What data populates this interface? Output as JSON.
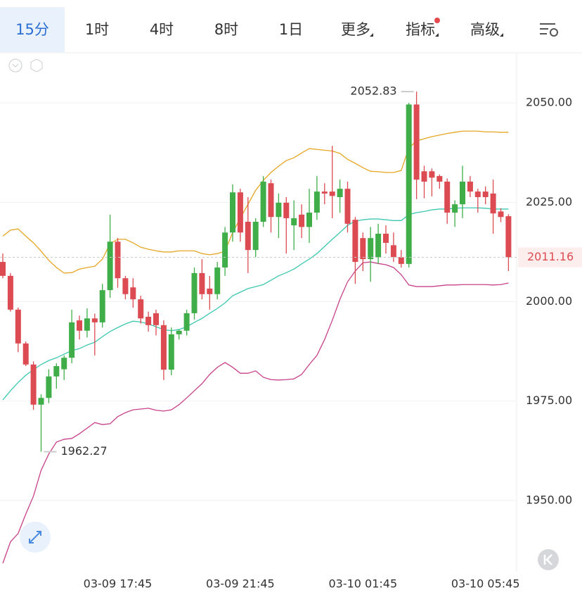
{
  "tabs": [
    "15分",
    "1时",
    "4时",
    "8时",
    "1日",
    "更多",
    "指标",
    "高级"
  ],
  "chart_data": {
    "type": "candlestick",
    "categories": [
      null,
      null,
      null,
      null,
      null,
      null,
      null,
      null,
      null,
      null,
      null,
      null,
      null,
      null,
      null,
      "03-09 17:45",
      null,
      null,
      null,
      null,
      null,
      null,
      null,
      null,
      null,
      null,
      null,
      null,
      null,
      null,
      null,
      "03-09 21:45",
      null,
      null,
      null,
      null,
      null,
      null,
      null,
      null,
      null,
      null,
      null,
      null,
      null,
      null,
      null,
      "03-10 01:45",
      null,
      null,
      null,
      null,
      null,
      null,
      null,
      null,
      null,
      null,
      null,
      null,
      null,
      null,
      null,
      "03-10 05:45",
      null,
      null,
      null
    ],
    "open": [
      2010.0,
      2006.5,
      1998.0,
      1989.5,
      1984.2,
      1974.1,
      1975.8,
      1981.2,
      1983.0,
      1985.9,
      1995.3,
      1992.7,
      1995.8,
      1994.8,
      2002.9,
      2015.1,
      2005.9,
      2003.6,
      2000.6,
      1996.2,
      1997.1,
      1994.1,
      1982.9,
      1991.8,
      1992.7,
      1997.1,
      2007.2,
      2003.3,
      2001.9,
      2008.6,
      2017.4,
      2027.5,
      2020.1,
      2013.0,
      2020.1,
      2029.8,
      2021.3,
      2024.9,
      2019.2,
      2021.9,
      2018.8,
      2022.4,
      2027.7,
      2027.7,
      2026.3,
      2028.4,
      2020.6,
      2016.0,
      2010.7,
      2011.2,
      2017.1,
      2014.2,
      2011.2,
      2009.5,
      2049.6,
      2032.8,
      2032.8,
      2031.6,
      2030.2,
      2022.4,
      2024.5,
      2030.2,
      2027.7,
      2027.7,
      2027.2,
      2022.7,
      2021.5
    ],
    "high": [
      2012.1,
      2007.2,
      1998.5,
      1990.0,
      1985.0,
      1976.7,
      1983.0,
      1984.5,
      1986.5,
      1998.0,
      1996.5,
      1998.3,
      1997.0,
      2004.5,
      2021.9,
      2016.0,
      2006.5,
      2005.9,
      2001.5,
      1997.5,
      1998.0,
      1995.3,
      1993.5,
      1993.0,
      1998.0,
      2008.6,
      2010.7,
      2006.5,
      2010.0,
      2018.8,
      2029.5,
      2028.4,
      2026.3,
      2021.0,
      2031.6,
      2030.7,
      2027.2,
      2026.3,
      2025.5,
      2024.5,
      2028.4,
      2031.6,
      2029.8,
      2039.2,
      2030.7,
      2030.2,
      2021.3,
      2017.4,
      2018.8,
      2019.6,
      2019.2,
      2017.4,
      2013.0,
      2050.0,
      2052.83,
      2034.2,
      2033.5,
      2032.0,
      2031.0,
      2025.5,
      2034.2,
      2031.6,
      2028.4,
      2029.0,
      2030.7,
      2023.5,
      2022.0
    ],
    "low": [
      2005.9,
      1997.5,
      1987.3,
      1983.8,
      1972.8,
      1962.27,
      1974.5,
      1978.1,
      1980.3,
      1984.5,
      1990.5,
      1991.0,
      1986.5,
      1993.5,
      2001.0,
      2003.5,
      2000.6,
      1998.5,
      1994.5,
      1992.5,
      1991.5,
      1980.3,
      1981.5,
      1990.5,
      1991.5,
      1995.5,
      2000.6,
      1998.0,
      2000.6,
      2006.5,
      2015.1,
      2015.1,
      2007.2,
      2011.2,
      2018.8,
      2017.4,
      2016.0,
      2012.1,
      2013.0,
      2016.0,
      2014.8,
      2020.6,
      2024.5,
      2021.0,
      2022.4,
      2017.4,
      2004.5,
      2007.7,
      2005.0,
      2009.5,
      2012.1,
      2010.0,
      2008.6,
      2008.6,
      2025.8,
      2026.0,
      2026.5,
      2028.4,
      2019.6,
      2018.8,
      2021.0,
      2026.3,
      2022.4,
      2024.5,
      2017.1,
      2020.0,
      2007.7
    ],
    "close": [
      2006.5,
      1998.0,
      1989.5,
      1984.2,
      1974.1,
      1975.8,
      1981.2,
      1983.8,
      1985.9,
      1994.8,
      1992.7,
      1995.8,
      1994.8,
      2002.9,
      2015.1,
      2005.9,
      2001.9,
      2000.6,
      1995.8,
      1994.1,
      1994.1,
      1982.9,
      1991.8,
      1992.7,
      1997.1,
      2007.2,
      2001.9,
      2001.9,
      2008.6,
      2017.4,
      2027.5,
      2017.4,
      2013.0,
      2020.1,
      2030.2,
      2021.3,
      2024.9,
      2021.0,
      2021.0,
      2018.8,
      2022.4,
      2027.7,
      2027.2,
      2026.6,
      2028.4,
      2019.6,
      2010.0,
      2010.7,
      2016.0,
      2017.1,
      2014.8,
      2011.2,
      2009.5,
      2049.6,
      2030.7,
      2030.2,
      2031.2,
      2030.2,
      2022.4,
      2024.5,
      2030.2,
      2027.7,
      2026.3,
      2026.3,
      2022.2,
      2021.3,
      2011.16
    ],
    "up_color": "#3fae49",
    "down_color": "#dc4a52",
    "bands": [
      {
        "color": "#e6a623",
        "values": [
          2016.5,
          2018.0,
          2018.3,
          2016.5,
          2014.8,
          2012.7,
          2010.4,
          2008.6,
          2007.2,
          2007.3,
          2008.2,
          2008.6,
          2008.9,
          2010.7,
          2014.6,
          2015.7,
          2015.7,
          2014.8,
          2013.7,
          2013.2,
          2012.8,
          2012.5,
          2012.5,
          2012.8,
          2012.8,
          2012.8,
          2012.1,
          2011.8,
          2012.1,
          2012.7,
          2017.4,
          2021.0,
          2024.5,
          2028.0,
          2030.5,
          2032.5,
          2034.1,
          2035.5,
          2036.2,
          2037.4,
          2038.5,
          2038.3,
          2038.1,
          2037.9,
          2037.3,
          2035.8,
          2034.8,
          2033.7,
          2032.8,
          2032.7,
          2032.5,
          2032.5,
          2033.0,
          2038.7,
          2040.4,
          2041.0,
          2041.5,
          2041.9,
          2042.3,
          2042.6,
          2042.9,
          2042.9,
          2042.9,
          2042.7,
          2042.7,
          2042.6,
          2042.6
        ]
      },
      {
        "color": "#3cc8b0",
        "values": [
          1975.3,
          1977.6,
          1979.7,
          1981.5,
          1982.9,
          1984.2,
          1985.2,
          1985.9,
          1986.8,
          1987.7,
          1988.2,
          1989.1,
          1989.8,
          1991.2,
          1992.5,
          1993.5,
          1994.4,
          1995.1,
          1994.9,
          1994.4,
          1993.7,
          1993.0,
          1992.7,
          1993.0,
          1993.7,
          1994.8,
          1995.8,
          1997.1,
          1998.3,
          1999.7,
          2001.5,
          2002.4,
          2003.3,
          2003.8,
          2004.3,
          2005.4,
          2006.5,
          2007.3,
          2008.2,
          2009.5,
          2010.7,
          2012.1,
          2013.9,
          2015.7,
          2017.4,
          2019.2,
          2020.3,
          2020.6,
          2020.8,
          2020.8,
          2020.6,
          2020.4,
          2020.4,
          2021.9,
          2022.4,
          2022.7,
          2023.1,
          2023.3,
          2023.3,
          2023.5,
          2023.6,
          2023.6,
          2023.6,
          2023.5,
          2023.3,
          2023.3,
          2023.3
        ]
      },
      {
        "color": "#c8408a",
        "values": [
          1934.2,
          1939.6,
          1941.7,
          1946.6,
          1951.1,
          1957.6,
          1961.7,
          1964.7,
          1965.4,
          1965.6,
          1966.8,
          1968.2,
          1969.6,
          1969.1,
          1969.3,
          1971.1,
          1972.1,
          1972.8,
          1973.0,
          1973.2,
          1972.7,
          1972.5,
          1972.8,
          1974.1,
          1975.8,
          1977.6,
          1979.4,
          1981.7,
          1983.5,
          1984.7,
          1983.5,
          1982.0,
          1982.0,
          1982.6,
          1981.0,
          1980.4,
          1980.3,
          1980.4,
          1980.6,
          1981.7,
          1984.2,
          1986.5,
          1990.5,
          1995.3,
          2000.6,
          2005.0,
          2007.7,
          2009.8,
          2010.0,
          2009.6,
          2009.3,
          2008.6,
          2006.8,
          2004.2,
          2003.8,
          2003.8,
          2003.8,
          2004.0,
          2004.2,
          2004.2,
          2004.3,
          2004.3,
          2004.3,
          2004.3,
          2004.2,
          2004.3,
          2004.7
        ]
      }
    ],
    "ylim": [
      1932.1,
      2062.6
    ],
    "yticks": [
      {
        "value": 1950,
        "label": "1950.00"
      },
      {
        "value": 1975,
        "label": "1975.00"
      },
      {
        "value": 2000,
        "label": "2000.00"
      },
      {
        "value": 2025,
        "label": "2025.00"
      },
      {
        "value": 2050,
        "label": "2050.00"
      }
    ],
    "grid": true
  }
}
